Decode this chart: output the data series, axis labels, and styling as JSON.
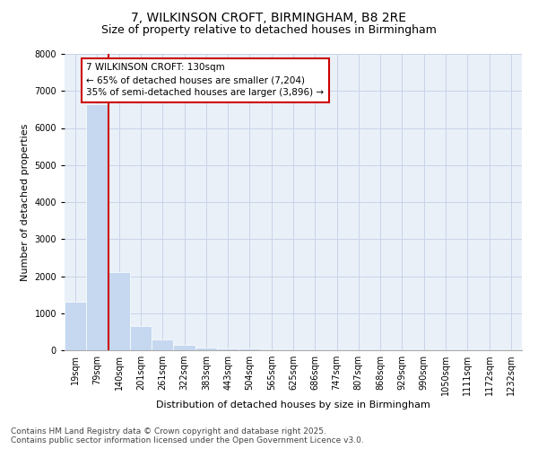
{
  "title_line1": "7, WILKINSON CROFT, BIRMINGHAM, B8 2RE",
  "title_line2": "Size of property relative to detached houses in Birmingham",
  "xlabel": "Distribution of detached houses by size in Birmingham",
  "ylabel": "Number of detached properties",
  "categories": [
    "19sqm",
    "79sqm",
    "140sqm",
    "201sqm",
    "261sqm",
    "322sqm",
    "383sqm",
    "443sqm",
    "504sqm",
    "565sqm",
    "625sqm",
    "686sqm",
    "747sqm",
    "807sqm",
    "868sqm",
    "929sqm",
    "990sqm",
    "1050sqm",
    "1111sqm",
    "1172sqm",
    "1232sqm"
  ],
  "values": [
    1310,
    6650,
    2100,
    650,
    300,
    150,
    80,
    50,
    60,
    0,
    0,
    0,
    0,
    0,
    0,
    0,
    0,
    0,
    0,
    0,
    0
  ],
  "bar_color": "#c5d8f0",
  "bar_edgecolor": "#c5d8f0",
  "vline_x_bar": 1,
  "vline_color": "#cc0000",
  "annotation_title": "7 WILKINSON CROFT: 130sqm",
  "annotation_line2": "← 65% of detached houses are smaller (7,204)",
  "annotation_line3": "35% of semi-detached houses are larger (3,896) →",
  "annotation_box_edgecolor": "#cc0000",
  "ylim": [
    0,
    8000
  ],
  "yticks": [
    0,
    1000,
    2000,
    3000,
    4000,
    5000,
    6000,
    7000,
    8000
  ],
  "grid_color": "#c8d4e8",
  "background_color": "#eaf0f8",
  "footer_line1": "Contains HM Land Registry data © Crown copyright and database right 2025.",
  "footer_line2": "Contains public sector information licensed under the Open Government Licence v3.0.",
  "title_fontsize": 10,
  "subtitle_fontsize": 9,
  "axis_label_fontsize": 8,
  "tick_fontsize": 7,
  "annotation_fontsize": 7.5,
  "footer_fontsize": 6.5
}
